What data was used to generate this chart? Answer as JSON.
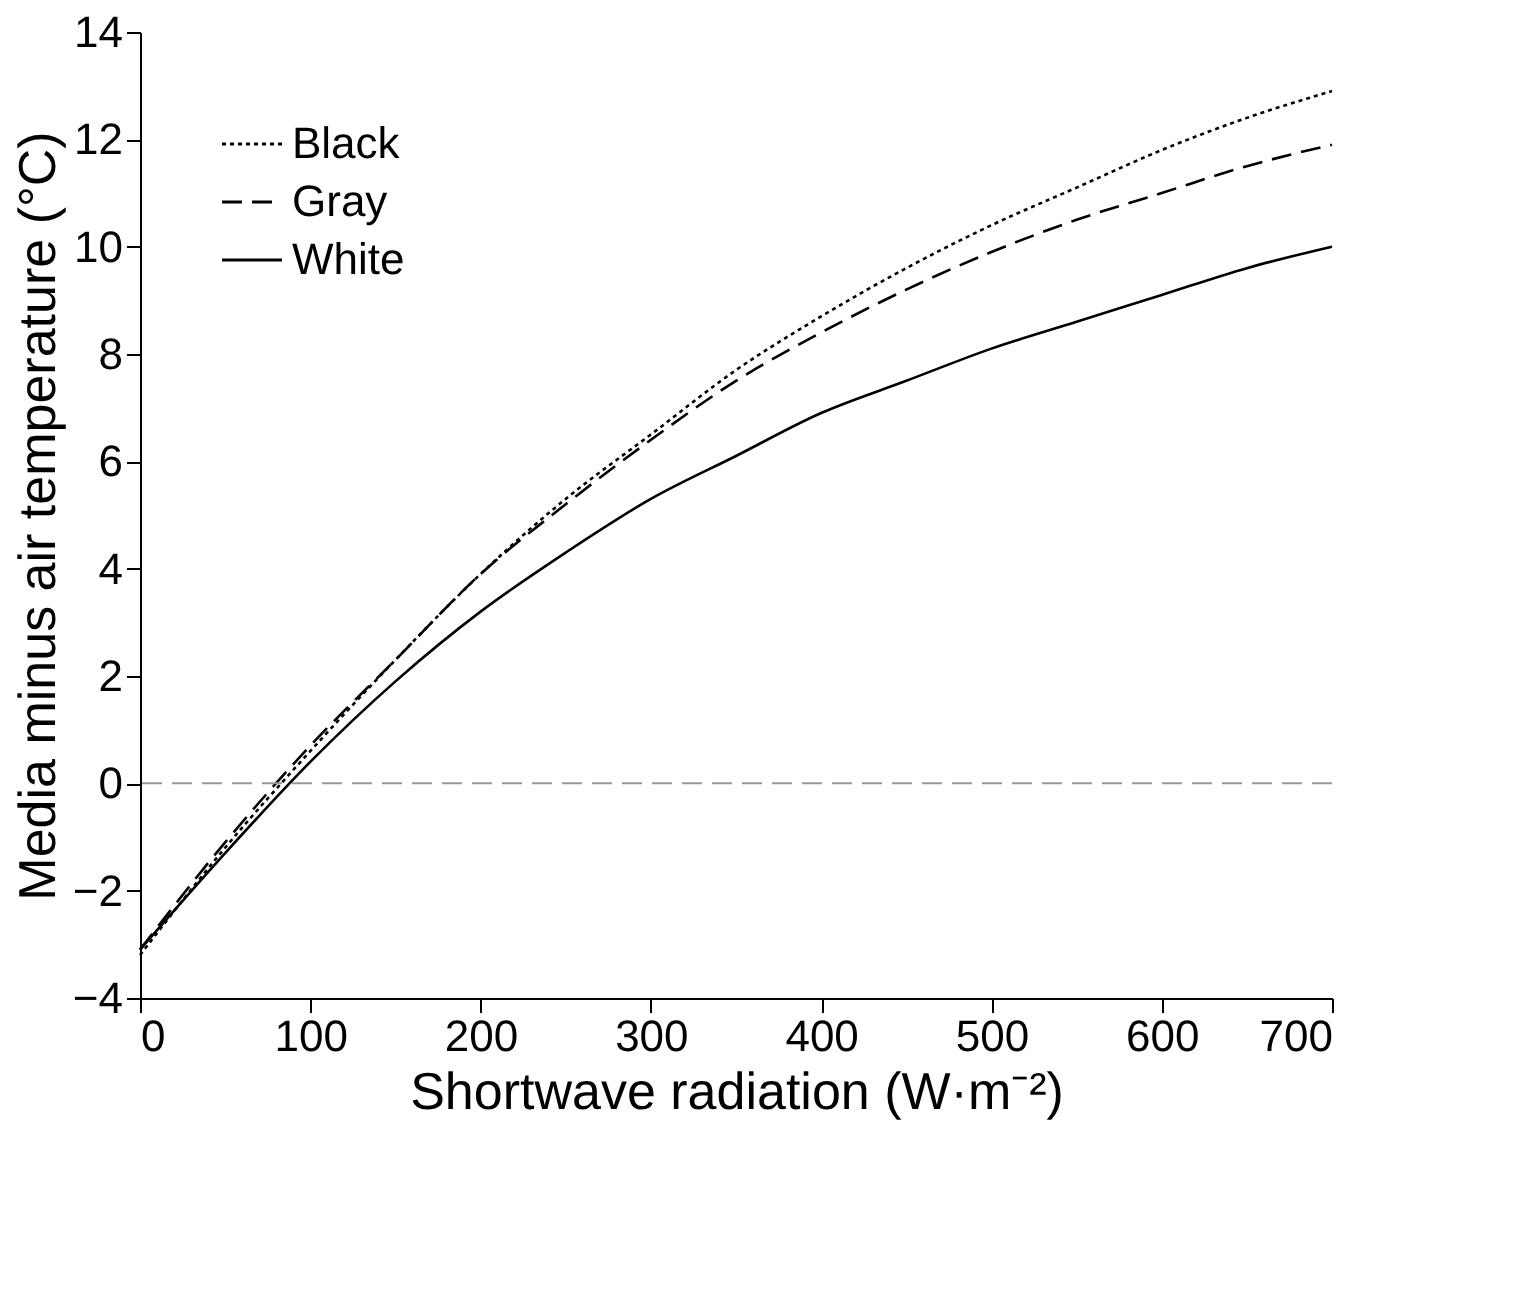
{
  "chart_data": {
    "type": "line",
    "xlabel": "Shortwave radiation (W·m⁻²)",
    "ylabel": "Media minus air temperature (°C)",
    "x": [
      0,
      50,
      100,
      150,
      200,
      250,
      300,
      350,
      400,
      450,
      500,
      550,
      600,
      650,
      700
    ],
    "series": [
      {
        "name": "Black",
        "color": "#000000",
        "line_style": "dotted",
        "values": [
          -3.2,
          -1.2,
          0.6,
          2.3,
          3.9,
          5.3,
          6.5,
          7.7,
          8.7,
          9.6,
          10.4,
          11.1,
          11.8,
          12.4,
          12.9
        ]
      },
      {
        "name": "Gray",
        "color": "#000000",
        "line_style": "dashed",
        "values": [
          -3.1,
          -1.1,
          0.7,
          2.3,
          3.9,
          5.2,
          6.4,
          7.5,
          8.4,
          9.2,
          9.9,
          10.5,
          11.0,
          11.5,
          11.9
        ]
      },
      {
        "name": "White",
        "color": "#000000",
        "line_style": "solid",
        "values": [
          -3.1,
          -1.3,
          0.4,
          1.9,
          3.2,
          4.3,
          5.3,
          6.1,
          6.9,
          7.5,
          8.1,
          8.6,
          9.1,
          9.6,
          10.0
        ]
      }
    ],
    "xlim": [
      0,
      700
    ],
    "xticks": [
      0,
      100,
      200,
      300,
      400,
      500,
      600,
      700
    ],
    "ylim": [
      -4,
      14
    ],
    "yticks": [
      -4,
      -2,
      0,
      2,
      4,
      6,
      8,
      10,
      12,
      14
    ],
    "ref_lines": [
      {
        "axis": "y",
        "value": 0,
        "color": "#999999",
        "line_style": "dashed"
      }
    ],
    "grid": false,
    "legend": "top left",
    "marker": "none"
  }
}
